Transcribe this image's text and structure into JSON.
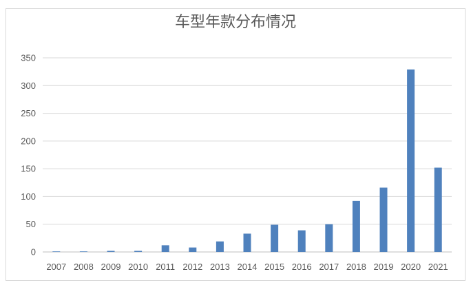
{
  "chart_data": {
    "type": "bar",
    "title": "车型年款分布情况",
    "xlabel": "",
    "ylabel": "",
    "categories": [
      "2007",
      "2008",
      "2009",
      "2010",
      "2011",
      "2012",
      "2013",
      "2014",
      "2015",
      "2016",
      "2017",
      "2018",
      "2019",
      "2020",
      "2021"
    ],
    "values": [
      1,
      1,
      2,
      2,
      12,
      8,
      19,
      33,
      49,
      39,
      50,
      92,
      116,
      329,
      152
    ],
    "ylim": [
      0,
      350
    ],
    "yticks": [
      0,
      50,
      100,
      150,
      200,
      250,
      300,
      350
    ],
    "grid": true,
    "legend": "none",
    "colors": {
      "bar": "#4f81bd",
      "grid": "#d9d9d9",
      "axis": "#bfbfbf",
      "text": "#595959"
    }
  }
}
